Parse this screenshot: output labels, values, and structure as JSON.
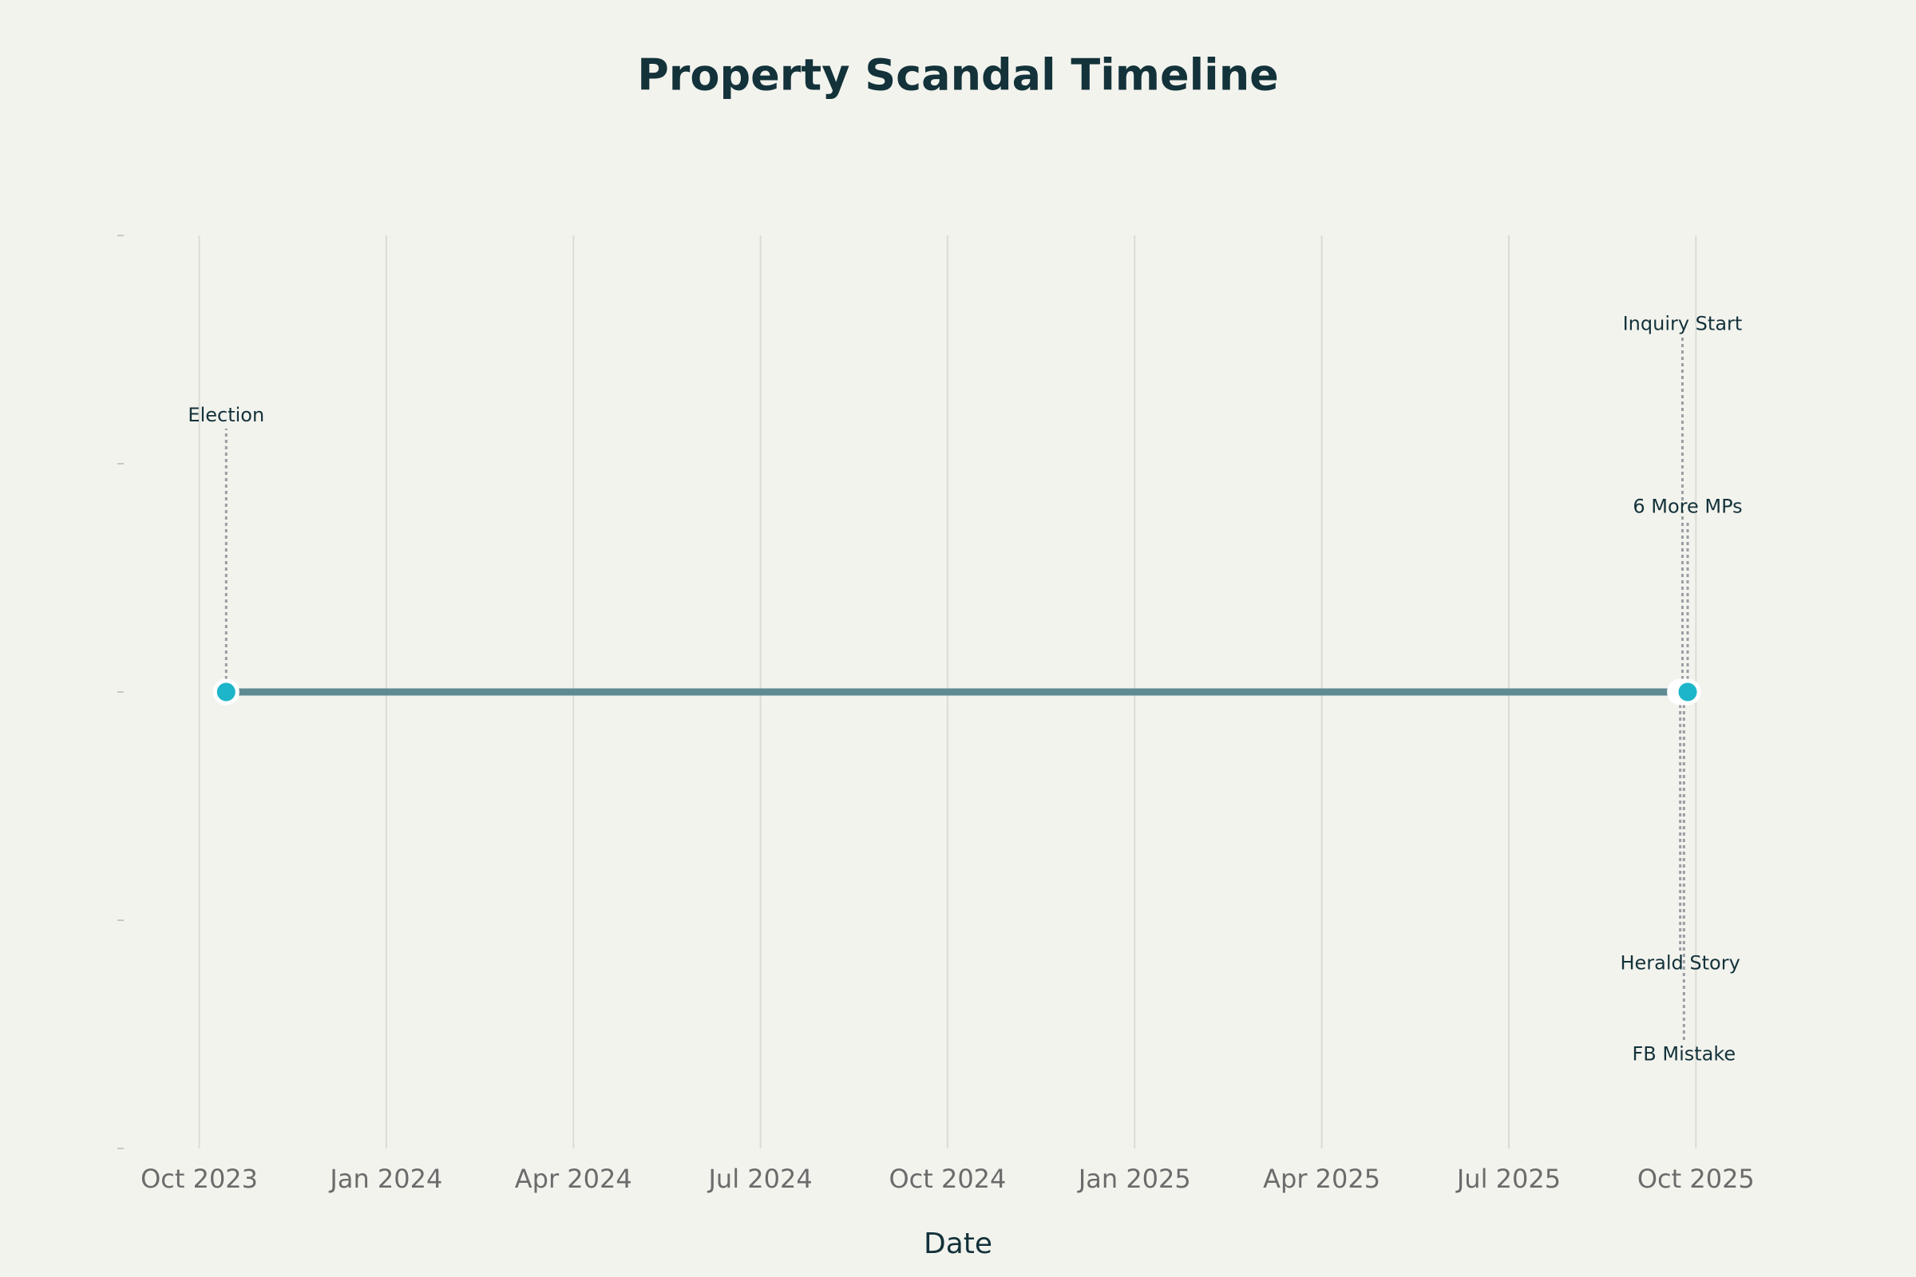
{
  "chart_data": {
    "type": "timeline",
    "title": "Property Scandal Timeline",
    "x_label": "Date",
    "labels": [
      "Election",
      "Herald Story",
      "Inquiry Start",
      "FB Mistake",
      "6 More MPs"
    ],
    "x": [
      2023.786,
      2025.729,
      2025.732,
      2025.734,
      2025.739
    ],
    "values": [
      0,
      0,
      0,
      0,
      0
    ],
    "label_y": [
      1.21,
      -1.19,
      1.61,
      -1.59,
      0.81
    ],
    "color": "#1cb5c9",
    "line_color": "#5f8a94",
    "xlim": [
      2023.647,
      2025.851
    ],
    "xticks": [
      {
        "value": 2023.75,
        "label": "Oct 2023"
      },
      {
        "value": 2024.0,
        "label": "Jan 2024"
      },
      {
        "value": 2024.25,
        "label": "Apr 2024"
      },
      {
        "value": 2024.5,
        "label": "Jul 2024"
      },
      {
        "value": 2024.75,
        "label": "Oct 2024"
      },
      {
        "value": 2025.0,
        "label": "Jan 2025"
      },
      {
        "value": 2025.25,
        "label": "Apr 2025"
      },
      {
        "value": 2025.5,
        "label": "Jul 2025"
      },
      {
        "value": 2025.75,
        "label": "Oct 2025"
      }
    ],
    "ylim": [
      -2,
      2
    ],
    "yticks": [
      -2,
      -1,
      0,
      1,
      2
    ],
    "grid": true
  }
}
